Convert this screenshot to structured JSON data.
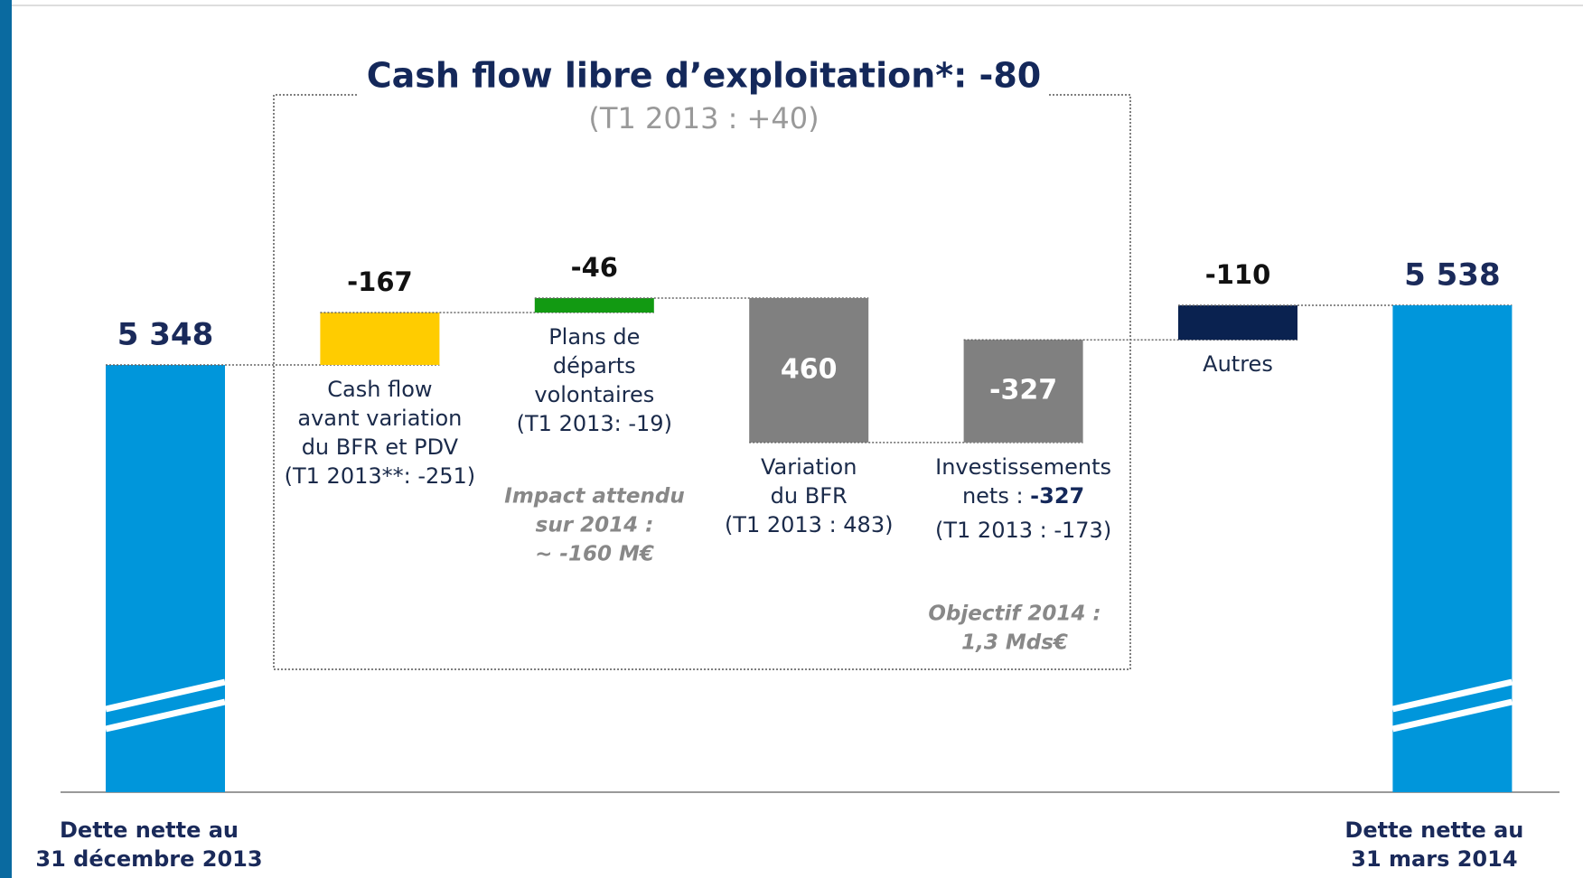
{
  "chart_data": {
    "type": "waterfall",
    "title": "Cash flow libre d’exploitation*: -80",
    "subtitle": "(T1 2013 : +40)",
    "categories": [
      [
        "Dette nette au",
        "31 décembre 2013"
      ],
      [
        "Cash flow",
        "avant variation",
        "du BFR et PDV",
        "(T1 2013**: -251)"
      ],
      [
        "Plans de",
        "départs",
        "volontaires",
        "(T1 2013: -19)"
      ],
      [
        "Variation",
        "du BFR",
        "(T1 2013 : 483)"
      ],
      [
        "Investissements",
        "nets : ",
        "(T1 2013 : -173)"
      ],
      [
        "Autres"
      ],
      [
        "Dette nette au",
        "31 mars 2014"
      ]
    ],
    "measure": [
      "absolute",
      "relative",
      "relative",
      "relative",
      "relative",
      "relative",
      "absolute"
    ],
    "values": [
      5348,
      -167,
      -46,
      460,
      -327,
      -110,
      5538
    ],
    "value_labels": [
      "5 348",
      "-167",
      "-46",
      "460",
      "-327",
      "-110",
      "5 538"
    ],
    "colors": [
      "#0096db",
      "#ffcc00",
      "#129a12",
      "#808080",
      "#808080",
      "#0a2250",
      "#0096db"
    ],
    "annotations": [
      [
        "Impact attendu",
        "sur 2014 :",
        "~ -160 M€"
      ],
      [
        "Objectif 2014 :",
        "1,3 Mds€"
      ]
    ]
  }
}
